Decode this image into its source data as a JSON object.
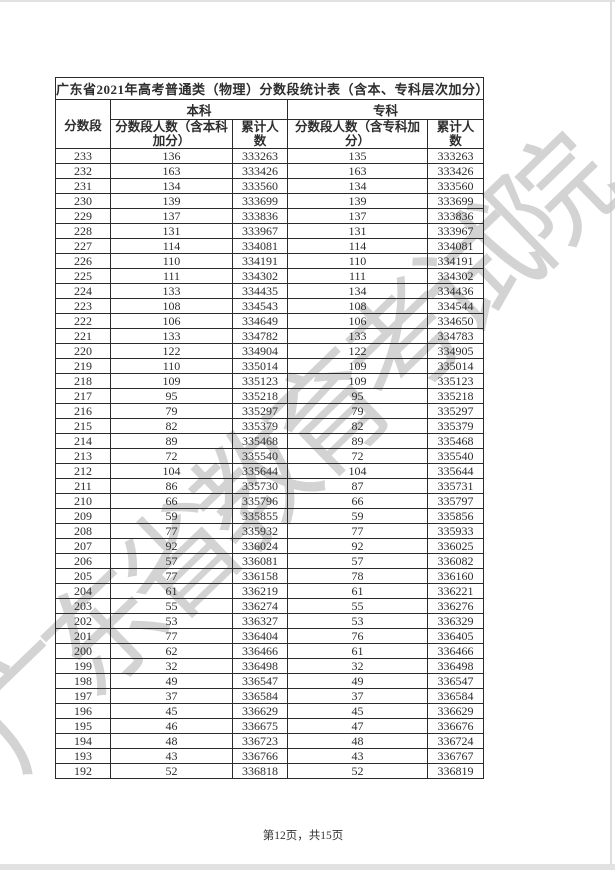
{
  "page": {
    "watermark": "广东省教育考试院",
    "footer": "第12页，共15页"
  },
  "table": {
    "title": "广东省2021年高考普通类（物理）分数段统计表（含本、专科层次加分）",
    "headers": {
      "score_band": "分数段",
      "undergraduate_group": "本科",
      "college_group": "专科",
      "undergrad_count": "分数段人数（含本科加分）",
      "undergrad_cumulative": "累计人数",
      "college_count": "分数段人数（含专科加分）",
      "college_cumulative": "累计人数"
    },
    "rows": [
      [
        233,
        136,
        333263,
        135,
        333263
      ],
      [
        232,
        163,
        333426,
        163,
        333426
      ],
      [
        231,
        134,
        333560,
        134,
        333560
      ],
      [
        230,
        139,
        333699,
        139,
        333699
      ],
      [
        229,
        137,
        333836,
        137,
        333836
      ],
      [
        228,
        131,
        333967,
        131,
        333967
      ],
      [
        227,
        114,
        334081,
        114,
        334081
      ],
      [
        226,
        110,
        334191,
        110,
        334191
      ],
      [
        225,
        111,
        334302,
        111,
        334302
      ],
      [
        224,
        133,
        334435,
        134,
        334436
      ],
      [
        223,
        108,
        334543,
        108,
        334544
      ],
      [
        222,
        106,
        334649,
        106,
        334650
      ],
      [
        221,
        133,
        334782,
        133,
        334783
      ],
      [
        220,
        122,
        334904,
        122,
        334905
      ],
      [
        219,
        110,
        335014,
        109,
        335014
      ],
      [
        218,
        109,
        335123,
        109,
        335123
      ],
      [
        217,
        95,
        335218,
        95,
        335218
      ],
      [
        216,
        79,
        335297,
        79,
        335297
      ],
      [
        215,
        82,
        335379,
        82,
        335379
      ],
      [
        214,
        89,
        335468,
        89,
        335468
      ],
      [
        213,
        72,
        335540,
        72,
        335540
      ],
      [
        212,
        104,
        335644,
        104,
        335644
      ],
      [
        211,
        86,
        335730,
        87,
        335731
      ],
      [
        210,
        66,
        335796,
        66,
        335797
      ],
      [
        209,
        59,
        335855,
        59,
        335856
      ],
      [
        208,
        77,
        335932,
        77,
        335933
      ],
      [
        207,
        92,
        336024,
        92,
        336025
      ],
      [
        206,
        57,
        336081,
        57,
        336082
      ],
      [
        205,
        77,
        336158,
        78,
        336160
      ],
      [
        204,
        61,
        336219,
        61,
        336221
      ],
      [
        203,
        55,
        336274,
        55,
        336276
      ],
      [
        202,
        53,
        336327,
        53,
        336329
      ],
      [
        201,
        77,
        336404,
        76,
        336405
      ],
      [
        200,
        62,
        336466,
        61,
        336466
      ],
      [
        199,
        32,
        336498,
        32,
        336498
      ],
      [
        198,
        49,
        336547,
        49,
        336547
      ],
      [
        197,
        37,
        336584,
        37,
        336584
      ],
      [
        196,
        45,
        336629,
        45,
        336629
      ],
      [
        195,
        46,
        336675,
        47,
        336676
      ],
      [
        194,
        48,
        336723,
        48,
        336724
      ],
      [
        193,
        43,
        336766,
        43,
        336767
      ],
      [
        192,
        52,
        336818,
        52,
        336819
      ]
    ]
  }
}
